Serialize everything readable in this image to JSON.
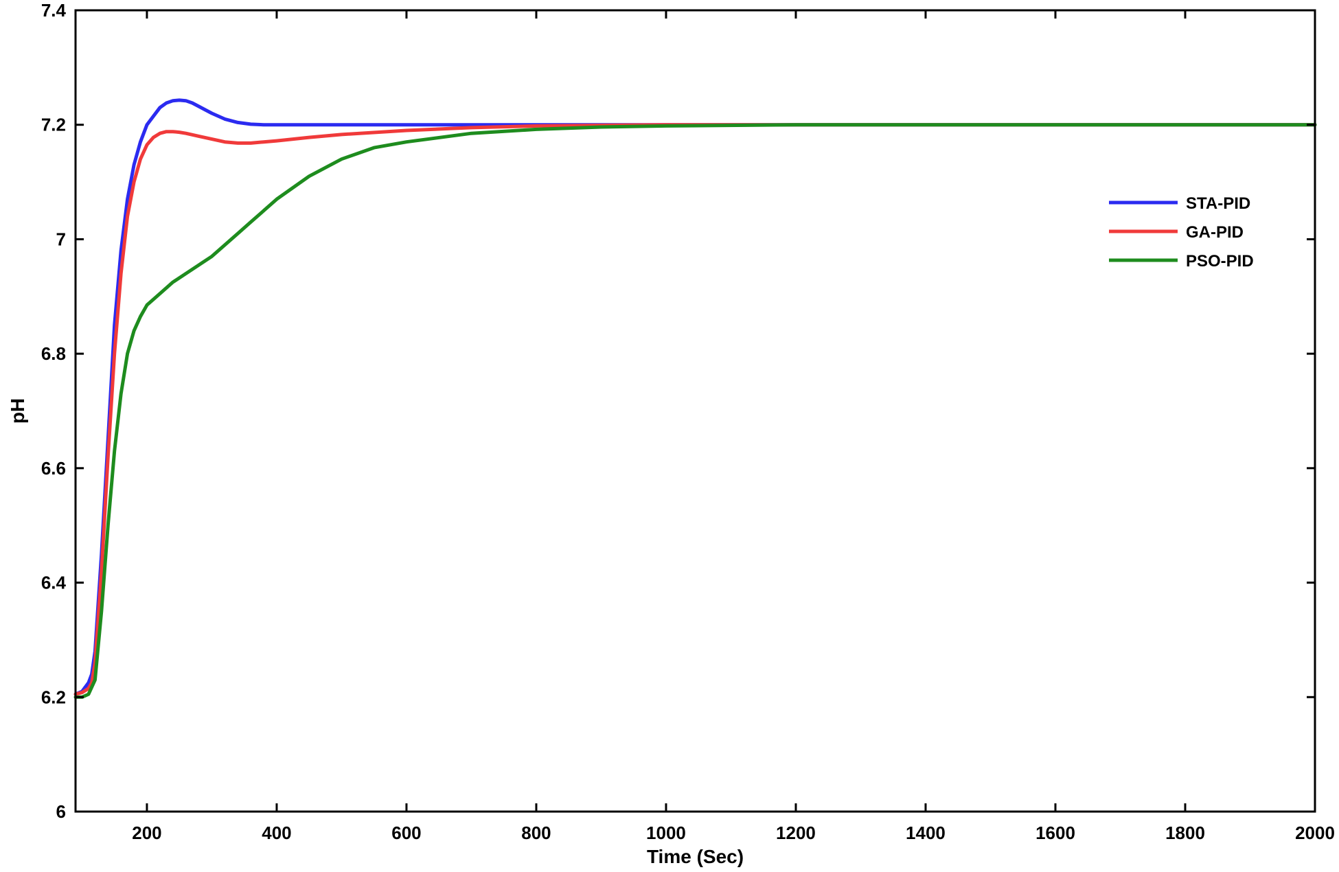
{
  "chart_data": {
    "type": "line",
    "title": "",
    "xlabel": "Time (Sec)",
    "ylabel": "pH",
    "xlim": [
      90,
      2000
    ],
    "ylim": [
      6,
      7.4
    ],
    "x_ticks": [
      "200",
      "400",
      "600",
      "800",
      "1000",
      "1200",
      "1400",
      "1600",
      "1800",
      "2000"
    ],
    "y_ticks": [
      "6",
      "6.2",
      "6.4",
      "6.6",
      "6.8",
      "7",
      "7.2",
      "7.4"
    ],
    "grid": false,
    "legend_position": "top-right",
    "series": [
      {
        "name": "STA-PID",
        "color": "#2b2bf0",
        "x": [
          90,
          100,
          110,
          115,
          120,
          130,
          140,
          150,
          160,
          170,
          180,
          190,
          200,
          210,
          220,
          230,
          240,
          250,
          260,
          270,
          280,
          290,
          300,
          320,
          340,
          360,
          380,
          400,
          450,
          500,
          600,
          800,
          1000,
          1200,
          1400,
          1600,
          1800,
          2000
        ],
        "y": [
          6.205,
          6.21,
          6.225,
          6.24,
          6.28,
          6.45,
          6.65,
          6.85,
          6.98,
          7.07,
          7.13,
          7.17,
          7.2,
          7.215,
          7.23,
          7.238,
          7.242,
          7.243,
          7.242,
          7.238,
          7.232,
          7.226,
          7.22,
          7.21,
          7.204,
          7.201,
          7.2,
          7.2,
          7.2,
          7.2,
          7.2,
          7.2,
          7.2,
          7.2,
          7.2,
          7.2,
          7.2,
          7.2
        ]
      },
      {
        "name": "GA-PID",
        "color": "#f03a3a",
        "x": [
          90,
          100,
          110,
          115,
          120,
          130,
          140,
          150,
          160,
          170,
          180,
          190,
          200,
          210,
          220,
          230,
          240,
          250,
          260,
          280,
          300,
          320,
          340,
          360,
          380,
          400,
          450,
          500,
          600,
          700,
          800,
          1000,
          1200,
          1400,
          1600,
          1800,
          2000
        ],
        "y": [
          6.205,
          6.208,
          6.215,
          6.225,
          6.26,
          6.42,
          6.62,
          6.8,
          6.94,
          7.04,
          7.1,
          7.14,
          7.165,
          7.178,
          7.185,
          7.188,
          7.188,
          7.187,
          7.185,
          7.18,
          7.175,
          7.17,
          7.168,
          7.168,
          7.17,
          7.172,
          7.178,
          7.183,
          7.19,
          7.195,
          7.198,
          7.2,
          7.2,
          7.2,
          7.2,
          7.2,
          7.2
        ]
      },
      {
        "name": "PSO-PID",
        "color": "#1e8c1e",
        "x": [
          90,
          100,
          110,
          120,
          130,
          140,
          150,
          160,
          170,
          180,
          190,
          200,
          210,
          220,
          240,
          260,
          280,
          300,
          320,
          340,
          360,
          380,
          400,
          450,
          500,
          550,
          600,
          700,
          800,
          900,
          1000,
          1200,
          1400,
          1600,
          1800,
          2000
        ],
        "y": [
          6.2,
          6.2,
          6.205,
          6.23,
          6.35,
          6.5,
          6.63,
          6.73,
          6.8,
          6.84,
          6.865,
          6.885,
          6.895,
          6.905,
          6.925,
          6.94,
          6.955,
          6.97,
          6.99,
          7.01,
          7.03,
          7.05,
          7.07,
          7.11,
          7.14,
          7.16,
          7.17,
          7.185,
          7.192,
          7.196,
          7.198,
          7.2,
          7.2,
          7.2,
          7.2,
          7.2
        ]
      }
    ]
  }
}
